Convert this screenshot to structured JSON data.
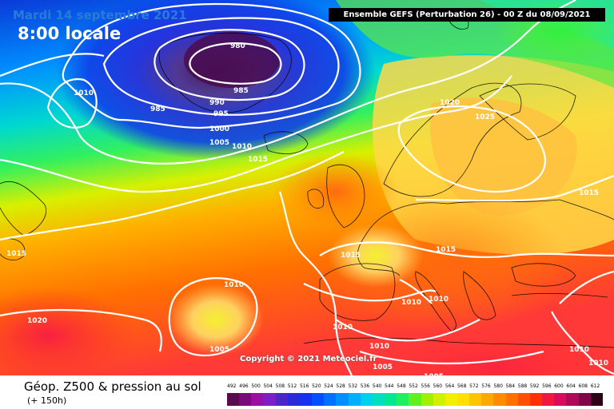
{
  "date_label": "Mardi 14 septembre 2021",
  "time_label": "8:00 locale",
  "header": "Ensemble GEFS  (Perturbation 26)  -  00 Z du 08/09/2021",
  "copyright": "Copyright © 2021 Meteociel.fr",
  "footer_title": "Géop. Z500 & pression au sol",
  "footer_subtitle": "(+ 150h)",
  "legend": {
    "values": [
      "492",
      "496",
      "500",
      "504",
      "508",
      "512",
      "516",
      "520",
      "524",
      "528",
      "532",
      "536",
      "540",
      "544",
      "548",
      "552",
      "556",
      "560",
      "564",
      "568",
      "572",
      "576",
      "580",
      "584",
      "588",
      "592",
      "596",
      "600",
      "604",
      "608",
      "612"
    ],
    "colors": [
      "#5a0a4e",
      "#7a0a7a",
      "#9a10a0",
      "#7e1ec8",
      "#4a28c8",
      "#2a2ad8",
      "#1830f0",
      "#0050ff",
      "#0070ff",
      "#0090ff",
      "#00b0ff",
      "#00d0f0",
      "#00e0c0",
      "#00e890",
      "#20f060",
      "#60f020",
      "#a0f000",
      "#d0f000",
      "#f0f000",
      "#ffe000",
      "#ffc400",
      "#ffa800",
      "#ff8c00",
      "#ff7000",
      "#ff5000",
      "#ff3000",
      "#f01840",
      "#d80c5a",
      "#b0085a",
      "#80064a",
      "#300018"
    ]
  },
  "isobars": [
    {
      "label": "980"
    },
    {
      "label": "985"
    },
    {
      "label": "985"
    },
    {
      "label": "990"
    },
    {
      "label": "995"
    },
    {
      "label": "1000"
    },
    {
      "label": "1005"
    },
    {
      "label": "1010"
    },
    {
      "label": "1010"
    },
    {
      "label": "1015"
    },
    {
      "label": "1020"
    },
    {
      "label": "1025"
    },
    {
      "label": "1015"
    },
    {
      "label": "1015"
    },
    {
      "label": "1015"
    },
    {
      "label": "1015"
    },
    {
      "label": "1010"
    },
    {
      "label": "1005"
    },
    {
      "label": "1020"
    },
    {
      "label": "1010"
    },
    {
      "label": "1010"
    },
    {
      "label": "1010"
    },
    {
      "label": "1010"
    },
    {
      "label": "1005"
    },
    {
      "label": "1005"
    },
    {
      "label": "1010"
    },
    {
      "label": "1010"
    }
  ]
}
